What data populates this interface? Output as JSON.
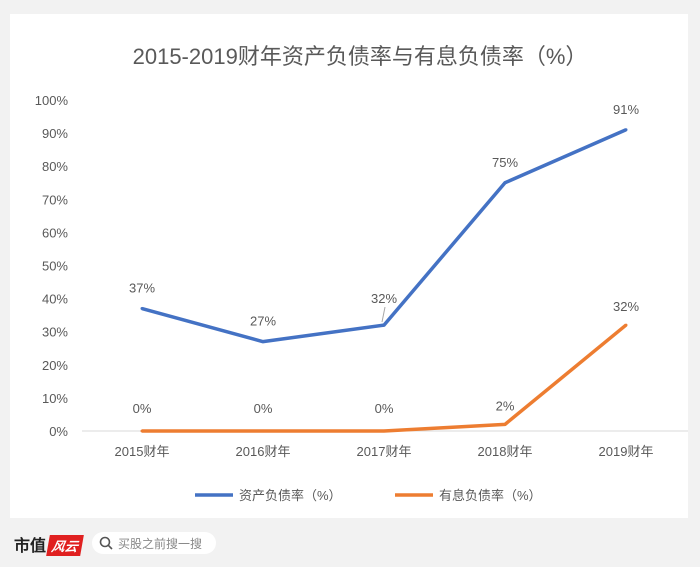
{
  "chart_data": {
    "type": "line",
    "title": "2015-2019财年资产负债率与有息负债率（%）",
    "categories": [
      "2015财年",
      "2016财年",
      "2017财年",
      "2018财年",
      "2019财年"
    ],
    "series": [
      {
        "name": "资产负债率（%）",
        "values": [
          37,
          27,
          32,
          75,
          91
        ],
        "labels": [
          "37%",
          "27%",
          "32%",
          "75%",
          "91%"
        ],
        "color": "#4472c4"
      },
      {
        "name": "有息负债率（%）",
        "values": [
          0,
          0,
          0,
          2,
          32
        ],
        "labels": [
          "0%",
          "0%",
          "0%",
          "2%",
          "32%"
        ],
        "color": "#ed7d31"
      }
    ],
    "ylim": [
      0,
      100
    ],
    "yticks": [
      "0%",
      "10%",
      "20%",
      "30%",
      "40%",
      "50%",
      "60%",
      "70%",
      "80%",
      "90%",
      "100%"
    ],
    "grid": false,
    "legend_position": "bottom"
  },
  "watermark": "市值风云",
  "footer": {
    "brand": "市值",
    "brand_logo": "风云",
    "search_placeholder": "买股之前搜一搜",
    "search_icon": "search-icon"
  }
}
